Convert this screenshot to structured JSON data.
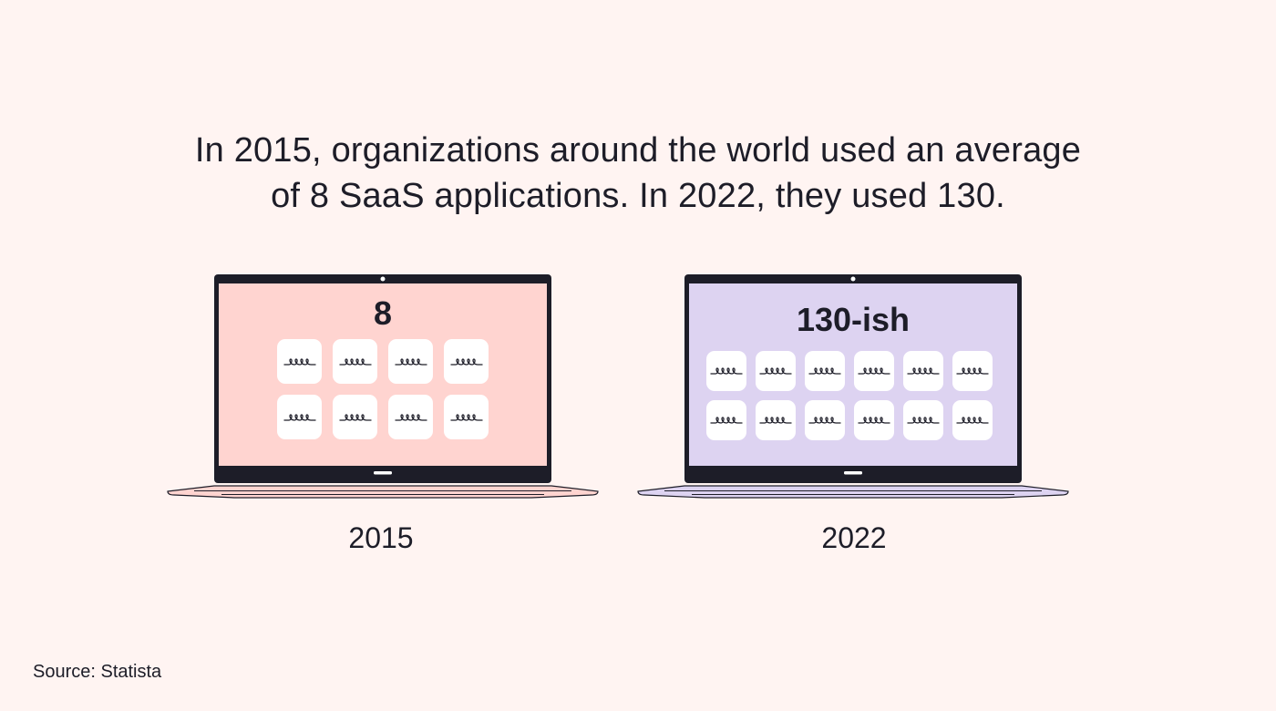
{
  "headline": {
    "line1": "In 2015, organizations around the world used an average",
    "line2": "of 8 SaaS applications. In 2022, they used 130."
  },
  "laptops": [
    {
      "count_label": "8",
      "year_label": "2015",
      "tile_icon": "squiggle-icon",
      "tile_count": 8,
      "screen_color": "#ffd4d0",
      "base_color": "#ffd4d0"
    },
    {
      "count_label": "130-ish",
      "year_label": "2022",
      "tile_icon": "squiggle-icon",
      "tile_count": 12,
      "screen_color": "#ddd3f1",
      "base_color": "#ddd3f1"
    }
  ],
  "source": "Source: Statista",
  "colors": {
    "background": "#fff4f2",
    "frame": "#1d1d28",
    "tile": "#ffffff"
  }
}
